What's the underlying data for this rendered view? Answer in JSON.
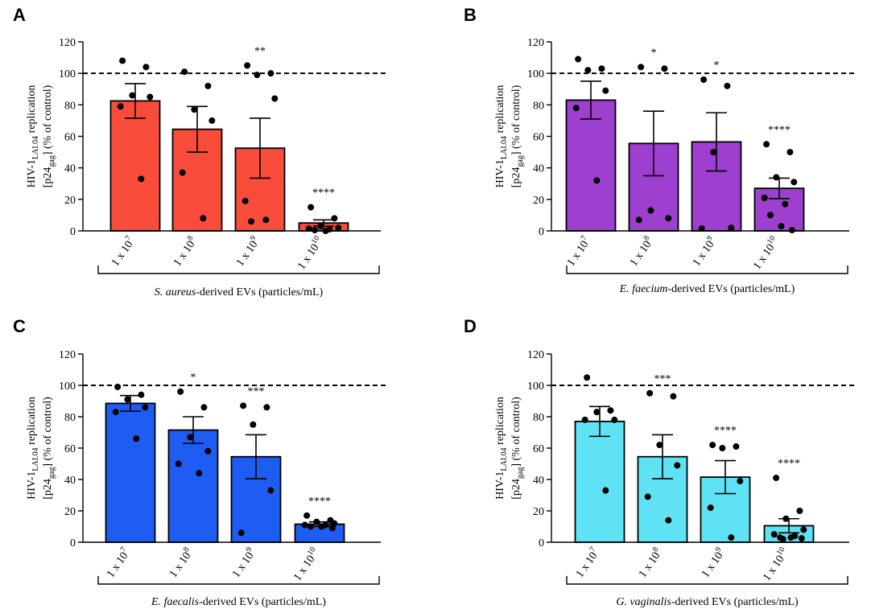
{
  "figure": {
    "ylabel_main": "HIV-1",
    "ylabel_sub": "LAI.04",
    "ylabel_rest": " replication",
    "ylabel_line2_a": "[p24",
    "ylabel_line2_sub": "gag",
    "ylabel_line2_b": "] (% of control)",
    "x_tick_base": "1 x 10",
    "reference_line": 100
  },
  "chart_data": [
    {
      "type": "bar",
      "panel": "A",
      "color": "#fa4c3a",
      "categories": [
        "1 x 10^7",
        "1 x 10^8",
        "1 x 10^9",
        "1 x 10^10"
      ],
      "tick_exponents": [
        "7",
        "8",
        "9",
        "10"
      ],
      "values": [
        82.5,
        64.5,
        52.5,
        5.0
      ],
      "error_sem": [
        11.0,
        14.5,
        19.0,
        2.0
      ],
      "points": [
        [
          108,
          104,
          86,
          85,
          79,
          33
        ],
        [
          101,
          92,
          77,
          70,
          37,
          8
        ],
        [
          105,
          100,
          99,
          84,
          19,
          7,
          6
        ],
        [
          15,
          8,
          3,
          2,
          1.5,
          1,
          0.5,
          0
        ]
      ],
      "significance": [
        "",
        "",
        "**",
        "****"
      ],
      "caption_italic": "S. aureus",
      "caption_rest": "-derived EVs (particles/mL)",
      "ylim": [
        0,
        120
      ],
      "yticks": [
        0,
        20,
        40,
        60,
        80,
        100,
        120
      ]
    },
    {
      "type": "bar",
      "panel": "B",
      "color": "#9d3fcf",
      "categories": [
        "1 x 10^7",
        "1 x 10^8",
        "1 x 10^9",
        "1 x 10^10"
      ],
      "tick_exponents": [
        "7",
        "8",
        "9",
        "10"
      ],
      "values": [
        83.0,
        55.5,
        56.5,
        27.0
      ],
      "error_sem": [
        12.0,
        20.5,
        18.5,
        6.5
      ],
      "points": [
        [
          109,
          103,
          102,
          89,
          78,
          32
        ],
        [
          104,
          103,
          13,
          8,
          7
        ],
        [
          96,
          92,
          50,
          2,
          1.5
        ],
        [
          55,
          50,
          34,
          31,
          21,
          17,
          10,
          3,
          0.5
        ]
      ],
      "significance": [
        "",
        "*",
        "*",
        "****"
      ],
      "caption_italic": "E. faecium",
      "caption_rest": "-derived EVs (particles/mL)",
      "ylim": [
        0,
        120
      ],
      "yticks": [
        0,
        20,
        40,
        60,
        80,
        100,
        120
      ]
    },
    {
      "type": "bar",
      "panel": "C",
      "color": "#1e5cf2",
      "categories": [
        "1 x 10^7",
        "1 x 10^8",
        "1 x 10^9",
        "1 x 10^10"
      ],
      "tick_exponents": [
        "7",
        "8",
        "9",
        "10"
      ],
      "values": [
        88.5,
        71.5,
        54.5,
        11.5
      ],
      "error_sem": [
        5.0,
        8.5,
        14.0,
        1.5
      ],
      "points": [
        [
          99,
          94,
          91,
          86,
          83,
          66
        ],
        [
          96,
          86,
          67,
          58,
          50,
          44
        ],
        [
          87,
          86,
          75,
          33,
          6
        ],
        [
          17,
          14,
          13,
          12,
          11,
          11,
          10,
          10,
          9
        ]
      ],
      "significance": [
        "",
        "*",
        "***",
        "****"
      ],
      "caption_italic": "E. faecalis",
      "caption_rest": "-derived EVs (particles/mL)",
      "ylim": [
        0,
        120
      ],
      "yticks": [
        0,
        20,
        40,
        60,
        80,
        100,
        120
      ]
    },
    {
      "type": "bar",
      "panel": "D",
      "color": "#5fe2f3",
      "categories": [
        "1 x 10^7",
        "1 x 10^8",
        "1 x 10^9",
        "1 x 10^10"
      ],
      "tick_exponents": [
        "7",
        "8",
        "9",
        "10"
      ],
      "values": [
        77.0,
        54.5,
        41.5,
        10.5
      ],
      "error_sem": [
        9.5,
        14.0,
        10.5,
        4.5
      ],
      "points": [
        [
          105,
          84,
          83,
          78,
          78,
          33
        ],
        [
          95,
          93,
          62,
          49,
          29,
          14
        ],
        [
          62,
          61,
          60,
          39,
          22,
          3
        ],
        [
          41,
          20,
          15,
          8,
          5,
          4,
          3,
          3,
          2.5,
          2
        ]
      ],
      "significance": [
        "",
        "***",
        "****",
        "****"
      ],
      "caption_italic": "G. vaginalis",
      "caption_rest": "-derived EVs (particles/mL)",
      "ylim": [
        0,
        120
      ],
      "yticks": [
        0,
        20,
        40,
        60,
        80,
        100,
        120
      ]
    }
  ]
}
